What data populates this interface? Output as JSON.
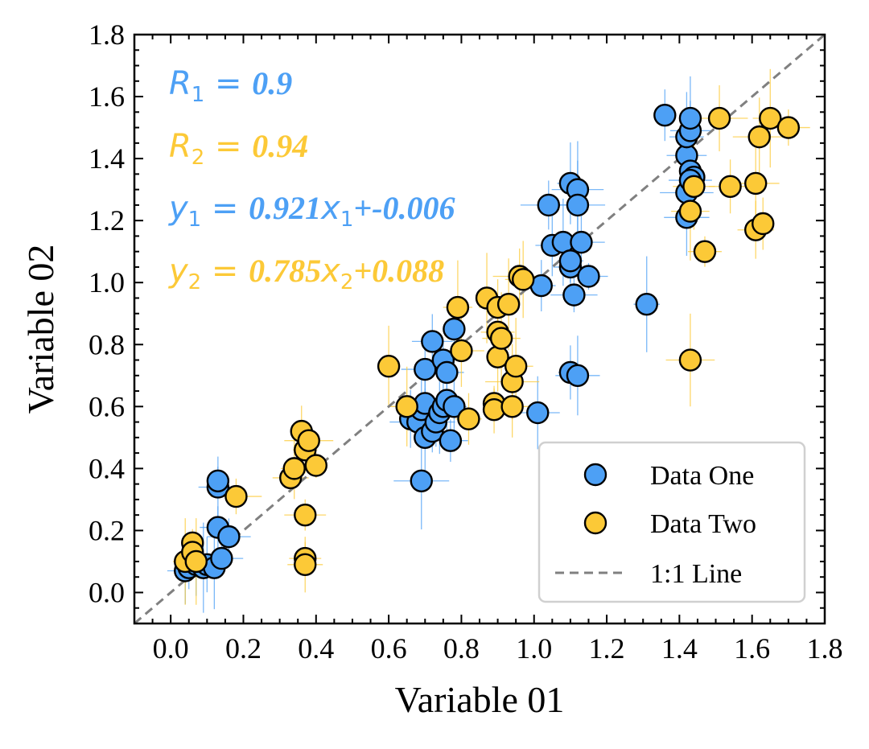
{
  "chart_data": {
    "type": "scatter",
    "title": "",
    "xlabel": "Variable 01",
    "ylabel": "Variable 02",
    "xlim": [
      -0.1,
      1.8
    ],
    "ylim": [
      -0.1,
      1.8
    ],
    "xticks": [
      "0.0",
      "0.2",
      "0.4",
      "0.6",
      "0.8",
      "1.0",
      "1.2",
      "1.4",
      "1.6",
      "1.8"
    ],
    "yticks": [
      "0.0",
      "0.2",
      "0.4",
      "0.6",
      "0.8",
      "1.0",
      "1.2",
      "1.4",
      "1.6",
      "1.8"
    ],
    "grid": false,
    "legend_position": "bottom-right",
    "reference_line": {
      "name": "1:1 Line",
      "color": "#808080",
      "style": "dashed"
    },
    "series": [
      {
        "name": "Data One",
        "color": "#4DA0F5",
        "points": [
          [
            0.04,
            0.07
          ],
          [
            0.05,
            0.08
          ],
          [
            0.07,
            0.09
          ],
          [
            0.09,
            0.08
          ],
          [
            0.1,
            0.09
          ],
          [
            0.12,
            0.08
          ],
          [
            0.14,
            0.11
          ],
          [
            0.13,
            0.21
          ],
          [
            0.16,
            0.18
          ],
          [
            0.13,
            0.34
          ],
          [
            0.13,
            0.36
          ],
          [
            0.69,
            0.36
          ],
          [
            0.66,
            0.56
          ],
          [
            0.68,
            0.55
          ],
          [
            0.69,
            0.59
          ],
          [
            0.7,
            0.61
          ],
          [
            0.7,
            0.5
          ],
          [
            0.72,
            0.52
          ],
          [
            0.73,
            0.55
          ],
          [
            0.74,
            0.58
          ],
          [
            0.75,
            0.6
          ],
          [
            0.76,
            0.62
          ],
          [
            0.78,
            0.6
          ],
          [
            0.77,
            0.49
          ],
          [
            0.72,
            0.81
          ],
          [
            0.7,
            0.72
          ],
          [
            0.75,
            0.75
          ],
          [
            0.76,
            0.71
          ],
          [
            0.78,
            0.85
          ],
          [
            1.01,
            0.58
          ],
          [
            1.04,
            1.25
          ],
          [
            1.05,
            1.12
          ],
          [
            1.08,
            1.13
          ],
          [
            1.1,
            1.05
          ],
          [
            1.1,
            1.07
          ],
          [
            1.11,
            0.96
          ],
          [
            1.1,
            1.32
          ],
          [
            1.12,
            1.3
          ],
          [
            1.12,
            1.25
          ],
          [
            1.13,
            1.13
          ],
          [
            1.15,
            1.02
          ],
          [
            1.02,
            0.99
          ],
          [
            1.1,
            0.71
          ],
          [
            1.12,
            0.7
          ],
          [
            1.31,
            0.93
          ],
          [
            1.36,
            1.54
          ],
          [
            1.42,
            1.41
          ],
          [
            1.43,
            1.36
          ],
          [
            1.42,
            1.47
          ],
          [
            1.43,
            1.49
          ],
          [
            1.43,
            1.53
          ],
          [
            1.42,
            1.29
          ],
          [
            1.44,
            1.34
          ],
          [
            1.42,
            1.21
          ],
          [
            1.43,
            1.33
          ]
        ]
      },
      {
        "name": "Data Two",
        "color": "#FCC937",
        "points": [
          [
            0.04,
            0.1
          ],
          [
            0.06,
            0.16
          ],
          [
            0.06,
            0.13
          ],
          [
            0.07,
            0.1
          ],
          [
            0.18,
            0.31
          ],
          [
            0.33,
            0.37
          ],
          [
            0.34,
            0.4
          ],
          [
            0.36,
            0.52
          ],
          [
            0.37,
            0.46
          ],
          [
            0.38,
            0.49
          ],
          [
            0.4,
            0.41
          ],
          [
            0.37,
            0.25
          ],
          [
            0.37,
            0.11
          ],
          [
            0.37,
            0.09
          ],
          [
            0.6,
            0.73
          ],
          [
            0.65,
            0.6
          ],
          [
            0.79,
            0.92
          ],
          [
            0.8,
            0.78
          ],
          [
            0.82,
            0.56
          ],
          [
            0.87,
            0.95
          ],
          [
            0.89,
            0.61
          ],
          [
            0.89,
            0.59
          ],
          [
            0.9,
            0.76
          ],
          [
            0.9,
            0.84
          ],
          [
            0.91,
            0.82
          ],
          [
            0.9,
            0.92
          ],
          [
            0.93,
            0.93
          ],
          [
            0.94,
            0.6
          ],
          [
            0.94,
            0.68
          ],
          [
            0.95,
            0.73
          ],
          [
            0.96,
            1.02
          ],
          [
            0.97,
            1.01
          ],
          [
            1.43,
            0.75
          ],
          [
            1.43,
            1.23
          ],
          [
            1.44,
            1.31
          ],
          [
            1.47,
            1.1
          ],
          [
            1.51,
            1.53
          ],
          [
            1.54,
            1.31
          ],
          [
            1.61,
            1.32
          ],
          [
            1.61,
            1.17
          ],
          [
            1.62,
            1.47
          ],
          [
            1.63,
            1.19
          ],
          [
            1.65,
            1.53
          ],
          [
            1.7,
            1.5
          ]
        ]
      }
    ],
    "annotations": [
      {
        "name": "R-one",
        "symbol": "R",
        "sub": "1",
        "value": "0.9",
        "color": "#4DA0F5"
      },
      {
        "name": "R-two",
        "symbol": "R",
        "sub": "2",
        "value": "0.94",
        "color": "#FCC937"
      },
      {
        "name": "fit-one",
        "symbol": "y",
        "sub": "1",
        "value": "0.921",
        "xsym": "x",
        "xsub": "1",
        "rest": "+-0.006",
        "color": "#4DA0F5"
      },
      {
        "name": "fit-two",
        "symbol": "y",
        "sub": "2",
        "value": "0.785",
        "xsym": "x",
        "xsub": "2",
        "rest": "+0.088",
        "color": "#FCC937"
      }
    ],
    "legend": [
      {
        "label": "Data One",
        "kind": "marker",
        "color": "#4DA0F5"
      },
      {
        "label": "Data Two",
        "kind": "marker",
        "color": "#FCC937"
      },
      {
        "label": "1:1 Line",
        "kind": "line",
        "color": "#808080"
      }
    ]
  }
}
